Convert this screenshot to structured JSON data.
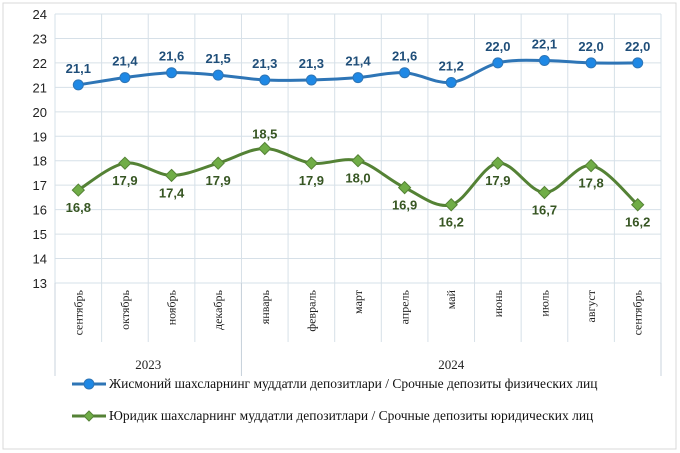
{
  "chart_data": {
    "type": "line",
    "categories": [
      "сентябрь",
      "октябрь",
      "ноябрь",
      "декабрь",
      "январь",
      "февраль",
      "март",
      "апрель",
      "май",
      "июнь",
      "июль",
      "август",
      "сентябрь"
    ],
    "year_groups": [
      {
        "label": "2023",
        "count": 4
      },
      {
        "label": "2024",
        "count": 9
      }
    ],
    "ylim": [
      13,
      24
    ],
    "yticks": [
      "13",
      "14",
      "15",
      "16",
      "17",
      "18",
      "19",
      "20",
      "21",
      "22",
      "23",
      "24"
    ],
    "grid": true,
    "legend_position": "bottom",
    "series": [
      {
        "name": "Жисмоний шахсларнинг  муддатли  депозитлари / Срочные депозиты  физических  лиц",
        "values": [
          21.1,
          21.4,
          21.6,
          21.5,
          21.3,
          21.3,
          21.4,
          21.6,
          21.2,
          22.0,
          22.1,
          22.0,
          22.0
        ],
        "labels": [
          "21,1",
          "21,4",
          "21,6",
          "21,5",
          "21,3",
          "21,3",
          "21,4",
          "21,6",
          "21,2",
          "22,0",
          "22,1",
          "22,0",
          "22,0"
        ],
        "color": "#2E75B6",
        "marker_color": "#1E88E5",
        "label_color": "#1F4E79",
        "marker": "circle"
      },
      {
        "name": "Юридик шахсларнинг  муддатли  депозитлари / Срочные депозиты юридических  лиц",
        "values": [
          16.8,
          17.9,
          17.4,
          17.9,
          18.5,
          17.9,
          18.0,
          16.9,
          16.2,
          17.9,
          16.7,
          17.8,
          16.2
        ],
        "labels": [
          "16,8",
          "17,9",
          "17,4",
          "17,9",
          "18,5",
          "17,9",
          "18,0",
          "16,9",
          "16,2",
          "17,9",
          "16,7",
          "17,8",
          "16,2"
        ],
        "color": "#548235",
        "marker_color": "#70AD47",
        "label_color": "#375623",
        "marker": "diamond"
      }
    ]
  }
}
